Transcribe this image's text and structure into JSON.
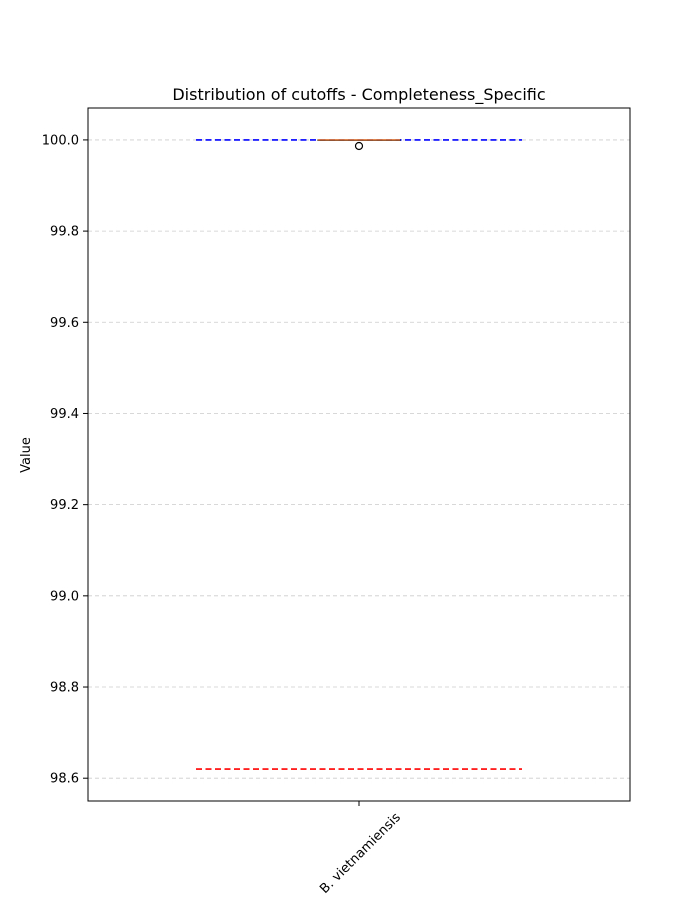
{
  "chart_data": {
    "type": "box",
    "title": "Distribution of cutoffs - Completeness_Specific",
    "xlabel": "",
    "ylabel": "Value",
    "categories": [
      "B. vietnamiensis"
    ],
    "boxes": [
      {
        "category": "B. vietnamiensis",
        "whisker_low": 100.0,
        "q1": 100.0,
        "median": 100.0,
        "q3": 100.0,
        "whisker_high": 100.0,
        "outliers": [
          99.99
        ]
      }
    ],
    "reference_lines": [
      {
        "value": 100.0,
        "color": "#0000ff",
        "style": "dashed"
      },
      {
        "value": 98.62,
        "color": "#ff0000",
        "style": "dashed"
      }
    ],
    "ylim": [
      98.55,
      100.07
    ],
    "yticks": [
      98.6,
      98.8,
      99.0,
      99.2,
      99.4,
      99.6,
      99.8,
      100.0
    ],
    "ytick_labels": [
      "98.6",
      "98.8",
      "99.0",
      "99.2",
      "99.4",
      "99.6",
      "99.8",
      "100.0"
    ],
    "grid": "y-dashed",
    "colors": {
      "grid": "#cccccc",
      "box": "#000000",
      "median": "#e07b3a",
      "outlier": "#000000"
    }
  }
}
